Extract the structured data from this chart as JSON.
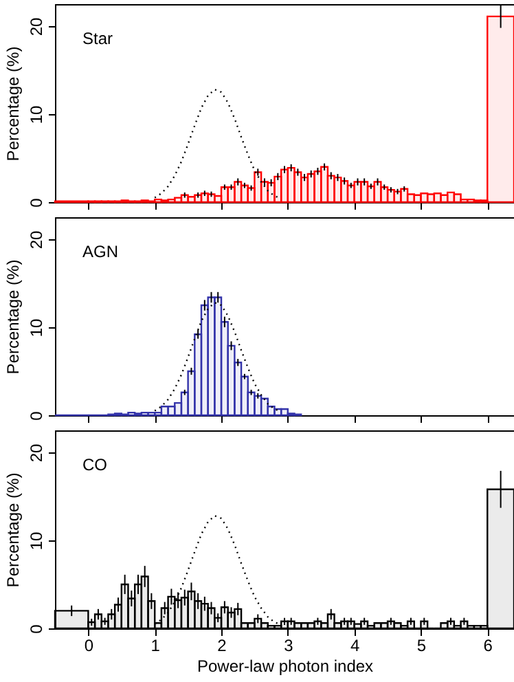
{
  "chart_data": [
    {
      "type": "histogram",
      "title": "Star",
      "ylabel": "Percentage (%)",
      "xlim": [
        -0.5,
        6.4
      ],
      "xticks": [
        0,
        1,
        2,
        3,
        4,
        5,
        6
      ],
      "ylim": [
        0,
        22.5
      ],
      "yticks": [
        0,
        10,
        20
      ],
      "tick_labels": "y",
      "grid": false,
      "bins": [
        -0.5,
        0,
        0.1,
        0.2,
        0.3,
        0.4,
        0.5,
        0.6,
        0.7,
        0.8,
        0.9,
        1.0,
        1.1,
        1.2,
        1.3,
        1.4,
        1.5,
        1.6,
        1.7,
        1.8,
        1.9,
        2.0,
        2.1,
        2.2,
        2.3,
        2.4,
        2.5,
        2.6,
        2.7,
        2.8,
        2.9,
        3.0,
        3.1,
        3.2,
        3.3,
        3.4,
        3.5,
        3.6,
        3.7,
        3.8,
        3.9,
        4.0,
        4.1,
        4.2,
        4.3,
        4.4,
        4.5,
        4.6,
        4.7,
        4.8,
        4.9,
        5.0,
        5.1,
        5.2,
        5.3,
        5.4,
        5.5,
        5.6,
        5.7,
        5.8,
        5.9,
        6.0,
        6.4
      ],
      "series": [
        {
          "type": "histogram",
          "color": "#ff0000",
          "values": [
            0.1,
            0.1,
            0.1,
            0.1,
            0.1,
            0.1,
            0.2,
            0.1,
            0.1,
            0.2,
            0.1,
            0.3,
            0.2,
            0.3,
            0.5,
            0.8,
            0.6,
            0.8,
            1.0,
            0.9,
            0.7,
            1.7,
            1.7,
            2.3,
            1.9,
            1.6,
            3.4,
            2.3,
            2.2,
            2.9,
            3.7,
            3.9,
            3.4,
            2.8,
            3.2,
            3.5,
            4.0,
            3.0,
            2.8,
            2.4,
            1.9,
            2.3,
            2.3,
            1.8,
            2.3,
            1.7,
            1.4,
            1.2,
            1.5,
            0.9,
            0.8,
            1.0,
            0.9,
            1.0,
            0.8,
            1.1,
            0.9,
            0.3,
            0.3,
            0.2,
            0.2,
            21.1
          ],
          "errors": [
            null,
            null,
            null,
            null,
            null,
            null,
            null,
            null,
            null,
            null,
            null,
            null,
            null,
            null,
            null,
            0.3,
            null,
            0.3,
            0.3,
            0.3,
            null,
            0.3,
            0.3,
            0.4,
            0.3,
            0.3,
            0.4,
            0.4,
            0.4,
            0.4,
            0.4,
            0.4,
            0.4,
            0.4,
            0.4,
            0.4,
            0.4,
            0.4,
            0.4,
            0.4,
            0.3,
            0.4,
            0.4,
            0.3,
            0.4,
            0.3,
            0.3,
            0.3,
            0.3,
            null,
            null,
            null,
            null,
            null,
            null,
            null,
            null,
            null,
            null,
            null,
            null,
            1.3
          ]
        },
        {
          "type": "line",
          "color": "#000000",
          "line_style": "dotted",
          "x": [
            1.0,
            1.1,
            1.2,
            1.3,
            1.4,
            1.5,
            1.6,
            1.7,
            1.8,
            1.9,
            2.0,
            2.1,
            2.2,
            2.3,
            2.4,
            2.5,
            2.6,
            2.7,
            2.8,
            2.9
          ],
          "values": [
            0.5,
            1.0,
            1.8,
            3.0,
            4.6,
            6.6,
            8.7,
            10.7,
            12.1,
            12.8,
            12.5,
            11.3,
            9.5,
            7.4,
            5.4,
            3.6,
            2.3,
            1.3,
            0.7,
            0.4
          ]
        }
      ]
    },
    {
      "type": "histogram",
      "title": "AGN",
      "ylabel": "Percentage (%)",
      "xlim": [
        -0.5,
        6.4
      ],
      "xticks": [
        0,
        1,
        2,
        3,
        4,
        5,
        6
      ],
      "ylim": [
        0,
        22.5
      ],
      "yticks": [
        0,
        10,
        20
      ],
      "tick_labels": "y",
      "grid": false,
      "bins": [
        -0.5,
        0.3,
        0.4,
        0.5,
        0.6,
        0.7,
        0.8,
        0.9,
        1.0,
        1.1,
        1.2,
        1.3,
        1.4,
        1.5,
        1.6,
        1.7,
        1.8,
        1.9,
        2.0,
        2.1,
        2.2,
        2.3,
        2.4,
        2.5,
        2.6,
        2.7,
        2.8,
        2.9,
        3.0,
        3.1,
        3.2
      ],
      "series": [
        {
          "type": "histogram",
          "color": "#3333aa",
          "values": [
            0,
            0.1,
            0.2,
            0.1,
            0.3,
            0.2,
            0.3,
            0.3,
            0.3,
            1.0,
            1.0,
            1.4,
            2.6,
            5.0,
            9.2,
            12.5,
            13.4,
            13.4,
            10.6,
            7.9,
            6.0,
            4.4,
            2.6,
            2.2,
            1.9,
            1.0,
            0.7,
            0.7,
            0.2,
            0.1
          ],
          "errors": [
            null,
            null,
            null,
            null,
            null,
            null,
            null,
            null,
            null,
            null,
            null,
            null,
            0.3,
            0.4,
            0.5,
            0.6,
            0.6,
            0.6,
            0.6,
            0.5,
            0.4,
            0.3,
            0.3,
            0.3,
            null,
            null,
            null,
            null,
            null,
            null
          ]
        },
        {
          "type": "line",
          "color": "#000000",
          "line_style": "dotted",
          "x": [
            1.0,
            1.1,
            1.2,
            1.3,
            1.4,
            1.5,
            1.6,
            1.7,
            1.8,
            1.9,
            2.0,
            2.1,
            2.2,
            2.3,
            2.4,
            2.5,
            2.6,
            2.7,
            2.8,
            2.9
          ],
          "values": [
            0.5,
            1.0,
            1.8,
            3.0,
            4.6,
            6.6,
            8.7,
            10.7,
            12.1,
            12.8,
            12.5,
            11.3,
            9.5,
            7.4,
            5.4,
            3.6,
            2.3,
            1.3,
            0.7,
            0.4
          ]
        }
      ]
    },
    {
      "type": "histogram",
      "title": "CO",
      "xlabel": "Power-law photon index",
      "ylabel": "Percentage (%)",
      "xlim": [
        -0.5,
        6.4
      ],
      "xticks": [
        0,
        1,
        2,
        3,
        4,
        5,
        6
      ],
      "ylim": [
        0,
        22.5
      ],
      "yticks": [
        0,
        10,
        20
      ],
      "grid": false,
      "bins": [
        -0.5,
        0,
        0.1,
        0.2,
        0.3,
        0.4,
        0.5,
        0.6,
        0.7,
        0.8,
        0.9,
        1.0,
        1.1,
        1.2,
        1.3,
        1.4,
        1.5,
        1.6,
        1.7,
        1.8,
        1.9,
        2.0,
        2.1,
        2.2,
        2.3,
        2.4,
        2.5,
        2.6,
        2.7,
        2.8,
        2.9,
        3.0,
        3.1,
        3.2,
        3.3,
        3.4,
        3.5,
        3.6,
        3.7,
        3.8,
        3.9,
        4.0,
        4.1,
        4.2,
        4.3,
        4.4,
        4.5,
        4.6,
        4.7,
        4.8,
        4.9,
        5.0,
        5.1,
        5.2,
        5.3,
        5.4,
        5.5,
        5.6,
        5.7,
        5.8,
        5.9,
        6.0,
        6.4
      ],
      "series": [
        {
          "type": "histogram",
          "color": "#000000",
          "values": [
            2.0,
            0.7,
            1.6,
            0.8,
            1.6,
            2.7,
            5.0,
            3.4,
            5.0,
            5.9,
            3.1,
            0.6,
            2.3,
            3.6,
            3.2,
            3.5,
            4.2,
            3.1,
            2.8,
            2.3,
            1.2,
            2.4,
            1.8,
            2.2,
            0.6,
            0.6,
            1.1,
            0.6,
            0.3,
            0.3,
            0.8,
            0.8,
            0.6,
            0.6,
            0.6,
            0.8,
            0.6,
            1.6,
            0.6,
            0.8,
            0.8,
            0.5,
            0.8,
            0.3,
            0.6,
            0.6,
            0.8,
            0.6,
            0.3,
            0.8,
            0,
            0.8,
            0,
            0,
            0.6,
            0.8,
            0.3,
            0.8,
            0.3,
            0.3,
            0.3,
            15.8
          ],
          "errors": [
            0.6,
            0.4,
            0.6,
            0.4,
            0.6,
            0.8,
            1.1,
            0.9,
            1.1,
            1.2,
            0.9,
            null,
            0.7,
            0.9,
            0.9,
            0.9,
            1.0,
            0.9,
            0.8,
            0.7,
            0.5,
            0.7,
            0.6,
            0.7,
            null,
            null,
            0.5,
            null,
            null,
            null,
            0.4,
            0.4,
            null,
            null,
            null,
            0.4,
            null,
            0.6,
            null,
            0.4,
            0.4,
            null,
            0.4,
            null,
            null,
            null,
            0.4,
            null,
            null,
            0.4,
            null,
            0.4,
            null,
            null,
            null,
            0.4,
            null,
            0.4,
            null,
            null,
            null,
            2.1
          ]
        },
        {
          "type": "line",
          "color": "#000000",
          "line_style": "dotted",
          "x": [
            1.0,
            1.1,
            1.2,
            1.3,
            1.4,
            1.5,
            1.6,
            1.7,
            1.8,
            1.9,
            2.0,
            2.1,
            2.2,
            2.3,
            2.4,
            2.5,
            2.6,
            2.7,
            2.8,
            2.9
          ],
          "values": [
            0.5,
            1.0,
            1.8,
            3.0,
            4.6,
            6.6,
            8.7,
            10.7,
            12.1,
            12.8,
            12.5,
            11.3,
            9.5,
            7.4,
            5.4,
            3.6,
            2.3,
            1.3,
            0.7,
            0.4
          ]
        }
      ]
    }
  ]
}
